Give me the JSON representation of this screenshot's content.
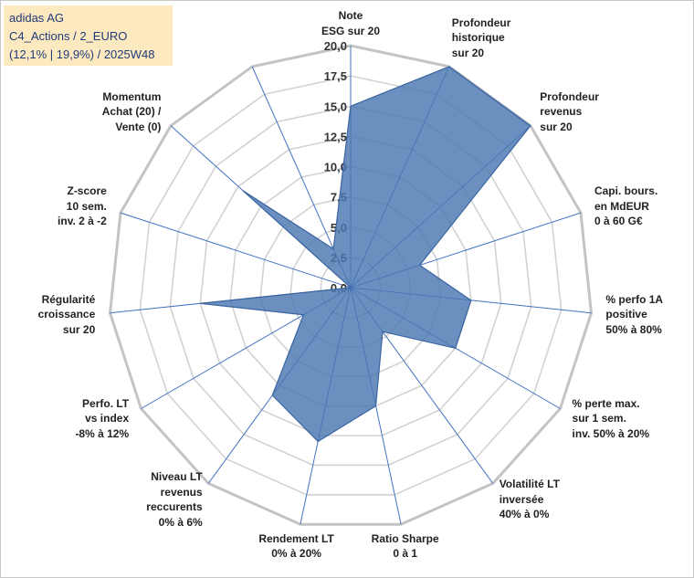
{
  "header": {
    "line1": "adidas AG",
    "line2": "C4_Actions / 2_EURO",
    "line3": "(12,1% | 19,9%) / 2025W48"
  },
  "colors": {
    "fill": "#4a78b2",
    "stroke": "#3a64a0",
    "radial": "#4472c4",
    "ring": "#c8c8c8"
  },
  "chart_data": {
    "type": "radar",
    "title": "adidas AG - C4_Actions / 2_EURO (12,1% | 19,9%) / 2025W48",
    "rmin": 0,
    "rmax": 20,
    "rstep": 2.5,
    "tick_labels": [
      "0,0",
      "2,5",
      "5,0",
      "7,5",
      "10,0",
      "12,5",
      "15,0",
      "17,5",
      "20,0"
    ],
    "axes": [
      {
        "label": [
          "Note",
          "ESG sur 20"
        ],
        "value": 15.0
      },
      {
        "label": [
          "Profondeur",
          "historique",
          "sur 20"
        ],
        "value": 20.0
      },
      {
        "label": [
          "Profondeur",
          "revenus",
          "sur 20"
        ],
        "value": 20.0
      },
      {
        "label": [
          "Capi. bours.",
          "en MdEUR",
          "0 à 60 G€"
        ],
        "value": 6.0
      },
      {
        "label": [
          "% perfo 1A",
          "positive",
          "50% à 80%"
        ],
        "value": 10.0
      },
      {
        "label": [
          "% perte max.",
          "sur 1 sem.",
          "inv. 50% à 20%"
        ],
        "value": 10.0
      },
      {
        "label": [
          "Volatilité LT",
          "inversée",
          "40% à 0%"
        ],
        "value": 4.5
      },
      {
        "label": [
          "Ratio Sharpe",
          "0 à 1"
        ],
        "value": 10.0
      },
      {
        "label": [
          "Rendement LT",
          "0% à 20%"
        ],
        "value": 13.0
      },
      {
        "label": [
          "Niveau LT",
          "revenus",
          "reccurents",
          "0% à 6%"
        ],
        "value": 11.0
      },
      {
        "label": [
          "Perfo. LT",
          "vs index",
          "-8% à 12%"
        ],
        "value": 4.5
      },
      {
        "label": [
          "Régularité",
          "croissance",
          "sur 20"
        ],
        "value": 12.5
      },
      {
        "label": [
          "Z-score",
          "10 sem.",
          "inv. 2 à -2"
        ],
        "value": 0.0
      },
      {
        "label": [
          "Momentum",
          "Achat (20) /",
          "Vente (0)"
        ],
        "value": 12.0
      },
      {
        "label": [
          "(unlabeled)"
        ],
        "value": 3.5
      }
    ]
  }
}
